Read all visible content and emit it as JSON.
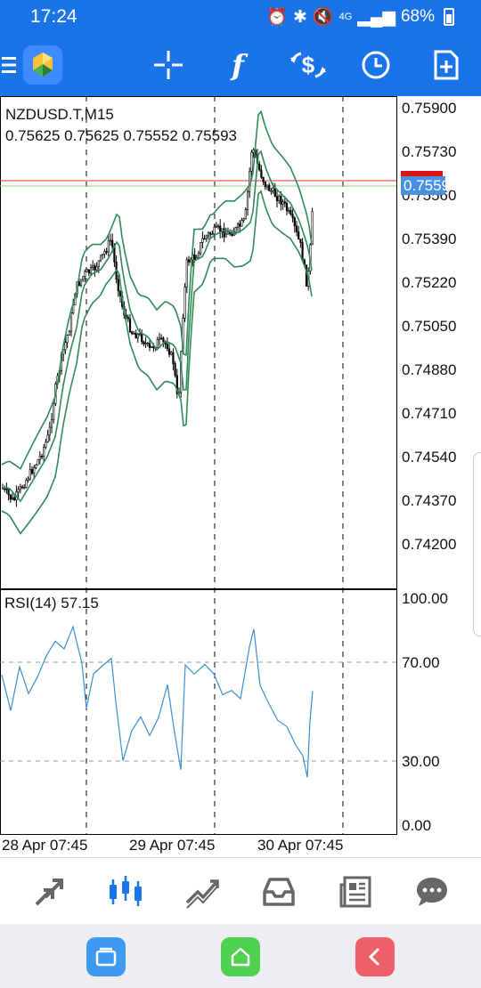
{
  "status_bar": {
    "time": "17:24",
    "battery": "68%",
    "network": "4G"
  },
  "toolbar": {
    "buttons": [
      {
        "name": "menu",
        "icon": "hamburger-icon"
      },
      {
        "name": "app-logo",
        "icon": "metatrader-logo-icon"
      },
      {
        "name": "crosshair",
        "icon": "crosshair-icon"
      },
      {
        "name": "indicators",
        "icon": "function-icon"
      },
      {
        "name": "symbols",
        "icon": "dollar-arrows-icon"
      },
      {
        "name": "timeframe",
        "icon": "clock-icon"
      },
      {
        "name": "new-order",
        "icon": "add-document-icon"
      }
    ]
  },
  "chart": {
    "symbol_line": "NZDUSD.T,M15",
    "ohlc_line": "0.75625 0.75625 0.75552 0.75593",
    "bid_price": "0.75593",
    "price_ticks": [
      "0.75900",
      "0.75730",
      "0.75560",
      "0.75390",
      "0.75220",
      "0.75050",
      "0.74880",
      "0.74710",
      "0.74540",
      "0.74370",
      "0.74200"
    ],
    "rsi_label": "RSI(14) 57.15",
    "rsi_ticks": [
      "100.00",
      "70.00",
      "30.00",
      "0.00"
    ],
    "time_ticks": [
      "28 Apr 07:45",
      "29 Apr 07:45",
      "30 Apr 07:45"
    ]
  },
  "bottom_nav": {
    "items": [
      {
        "name": "quotes",
        "icon": "quotes-arrows-icon",
        "active": false
      },
      {
        "name": "charts",
        "icon": "candlesticks-icon",
        "active": true
      },
      {
        "name": "trade",
        "icon": "trend-icon",
        "active": false
      },
      {
        "name": "history",
        "icon": "inbox-icon",
        "active": false
      },
      {
        "name": "news",
        "icon": "newspaper-icon",
        "active": false
      },
      {
        "name": "messages",
        "icon": "chat-icon",
        "active": false
      }
    ]
  },
  "colors": {
    "accent": "#1b73e8",
    "bollinger": "#2e8b57",
    "rsi": "#3a8fd6",
    "bid_line": "#e03030"
  }
}
